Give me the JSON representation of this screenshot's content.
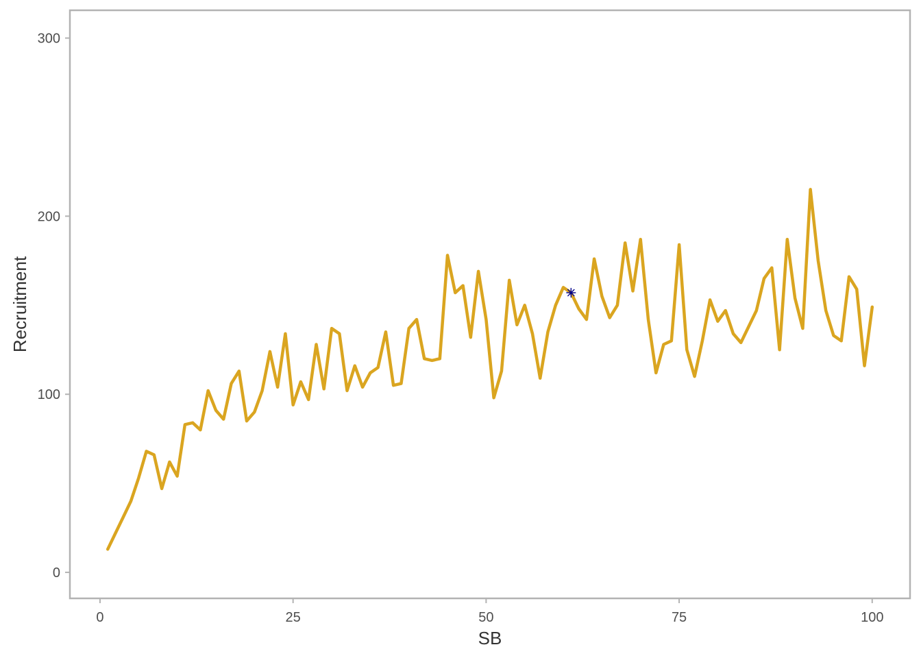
{
  "chart_data": {
    "type": "line",
    "xlabel": "SB",
    "ylabel": "Recruitment",
    "xlim": [
      -3.9,
      104.9
    ],
    "ylim": [
      -14.6,
      315.6
    ],
    "x_ticks": [
      0,
      25,
      50,
      75,
      100
    ],
    "y_ticks": [
      0,
      100,
      200,
      300
    ],
    "x_tick_labels": [
      "0",
      "25",
      "50",
      "75",
      "100"
    ],
    "y_tick_labels": [
      "0",
      "100",
      "200",
      "300"
    ],
    "grid": false,
    "legend": "none",
    "line_color": "#DAA520",
    "marker_color": "#00008B",
    "series": [
      {
        "x": [
          1,
          2,
          3,
          4,
          5,
          6,
          7,
          8,
          9,
          10,
          11,
          12,
          13,
          14,
          15,
          16,
          17,
          18,
          19,
          20,
          21,
          22,
          23,
          24,
          25,
          26,
          27,
          28,
          29,
          30,
          31,
          32,
          33,
          34,
          35,
          36,
          37,
          38,
          39,
          40,
          41,
          42,
          43,
          44,
          45,
          46,
          47,
          48,
          49,
          50,
          51,
          52,
          53,
          54,
          55,
          56,
          57,
          58,
          59,
          60,
          61,
          62,
          63,
          64,
          65,
          66,
          67,
          68,
          69,
          70,
          71,
          72,
          73,
          74,
          75,
          76,
          77,
          78,
          79,
          80,
          81,
          82,
          83,
          84,
          85,
          86,
          87,
          88,
          89,
          90,
          91,
          92,
          93,
          94,
          95,
          96,
          97,
          98,
          99,
          100
        ],
        "values": [
          13,
          22,
          31,
          40,
          53,
          68,
          66,
          47,
          62,
          54,
          83,
          84,
          80,
          102,
          91,
          86,
          106,
          113,
          85,
          90,
          102,
          124,
          104,
          134,
          94,
          107,
          97,
          128,
          103,
          137,
          134,
          102,
          116,
          104,
          112,
          115,
          135,
          105,
          106,
          137,
          142,
          120,
          119,
          120,
          178,
          157,
          161,
          132,
          169,
          142,
          98,
          113,
          164,
          139,
          150,
          134,
          109,
          135,
          150,
          160,
          157,
          148,
          142,
          176,
          155,
          143,
          150,
          185,
          158,
          187,
          142,
          112,
          128,
          130,
          184,
          125,
          110,
          130,
          153,
          141,
          147,
          134,
          129,
          138,
          147,
          165,
          171,
          125,
          187,
          154,
          137,
          215,
          175,
          147,
          133,
          130,
          166,
          159,
          116,
          149
        ]
      }
    ],
    "highlight_point": {
      "x": 61,
      "y": 157,
      "marker": "asterisk"
    }
  }
}
